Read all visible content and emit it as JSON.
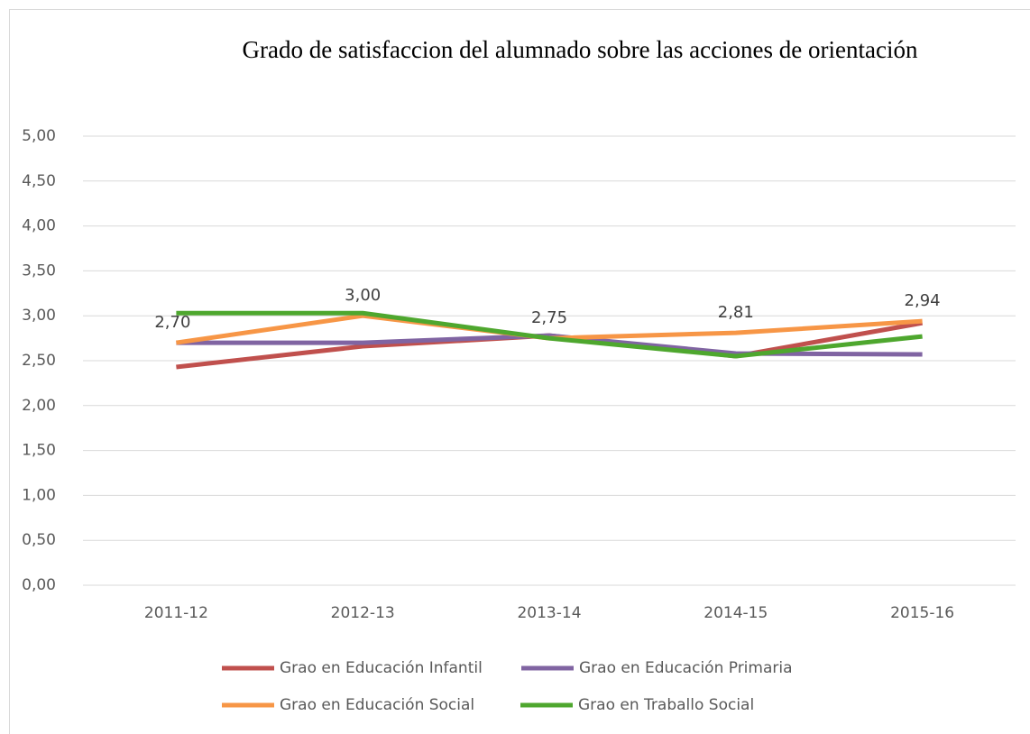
{
  "chart_data": {
    "type": "line",
    "title": "Grado de satisfaccion del alumnado sobre las acciones de orientación",
    "categories": [
      "2011-12",
      "2012-13",
      "2013-14",
      "2014-15",
      "2015-16"
    ],
    "series": [
      {
        "name": "Grao en Educación Infantil",
        "color": "#c0504d",
        "values": [
          2.43,
          2.66,
          2.78,
          2.55,
          2.92
        ]
      },
      {
        "name": "Grao en Educación Primaria",
        "color": "#8064a2",
        "values": [
          2.7,
          2.7,
          2.78,
          2.58,
          2.57
        ]
      },
      {
        "name": "Grao en Educación Social",
        "color": "#f79646",
        "values": [
          2.7,
          3.0,
          2.75,
          2.81,
          2.94
        ],
        "value_labels": [
          "2,70",
          "3,00",
          "2,75",
          "2,81",
          "2,94"
        ]
      },
      {
        "name": "Grao en Traballo Social",
        "color": "#4ea72e",
        "values": [
          3.03,
          3.03,
          2.75,
          2.55,
          2.77
        ]
      }
    ],
    "ylim": [
      0,
      5
    ],
    "yticks": [
      {
        "value": 0,
        "label": "0,00"
      },
      {
        "value": 0.5,
        "label": "0,50"
      },
      {
        "value": 1,
        "label": "1,00"
      },
      {
        "value": 1.5,
        "label": "1,50"
      },
      {
        "value": 2,
        "label": "2,00"
      },
      {
        "value": 2.5,
        "label": "2,50"
      },
      {
        "value": 3,
        "label": "3,00"
      },
      {
        "value": 3.5,
        "label": "3,50"
      },
      {
        "value": 4,
        "label": "4,00"
      },
      {
        "value": 4.5,
        "label": "4,50"
      },
      {
        "value": 5,
        "label": "5,00"
      }
    ],
    "grid": true,
    "legend": "bottom"
  }
}
